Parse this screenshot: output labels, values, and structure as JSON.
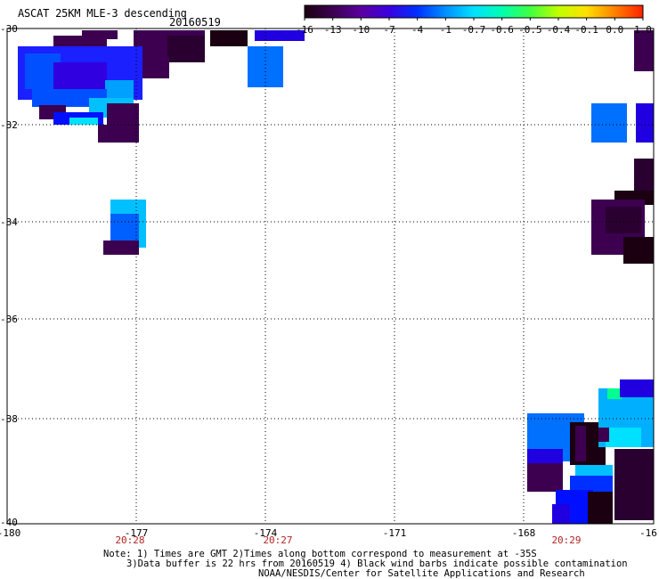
{
  "header": {
    "title": "ASCAT 25KM MLE-3 descending",
    "date": "20160519"
  },
  "colorbar": {
    "labels": [
      "-16",
      "-13",
      "-10",
      "-7",
      "-4",
      "-1",
      "-0.7",
      "-0.6",
      "-0.5",
      "-0.4",
      "-0.1",
      "0.0",
      "1.0"
    ],
    "colors": [
      "#1a0010",
      "#3d0050",
      "#5a00a0",
      "#3a00e0",
      "#0030ff",
      "#0090ff",
      "#00e0ff",
      "#00ffb0",
      "#40ff40",
      "#c0ff00",
      "#ffe000",
      "#ff8000",
      "#ff2000"
    ]
  },
  "axes": {
    "lat_labels": [
      "-30",
      "-32",
      "-34",
      "-36",
      "-38",
      "-40"
    ],
    "lon_labels": [
      "-180",
      "-177",
      "-174",
      "-171",
      "-168",
      "-16"
    ],
    "time_labels": [
      "20:28",
      "20:27",
      "20:29"
    ]
  },
  "notes": {
    "line1": "Note: 1) Times are GMT 2)Times along bottom correspond to measurement at -35S",
    "line2": "3)Data buffer is 22 hrs from 20160519 4) Black wind barbs indicate possible contamination",
    "line3": "NOAA/NESDIS/Center for Satellite Applications and Research"
  }
}
